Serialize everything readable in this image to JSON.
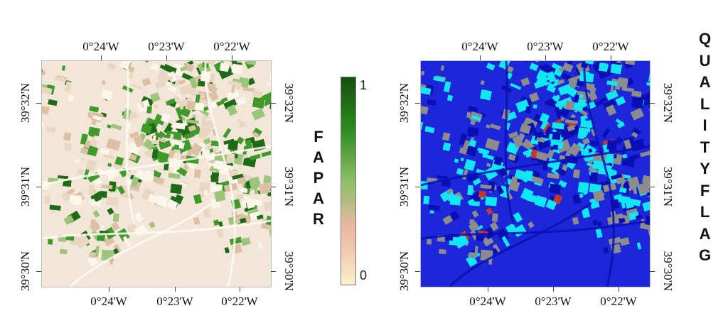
{
  "left_map": {
    "name": "FAPAR",
    "title_letters": [
      "F",
      "A",
      "P",
      "A",
      "R"
    ],
    "x_ticks_top": [
      "0°24'W",
      "0°23'W",
      "0°22'W"
    ],
    "x_ticks_bottom": [
      "0°24'W",
      "0°23'W",
      "0°22'W"
    ],
    "y_ticks_left": [
      "39°32'N",
      "39°31'N",
      "39°30'N"
    ],
    "y_ticks_right": [
      "39°32'N",
      "39°31'N",
      "39°30'N"
    ],
    "colors": {
      "background": "#f2e6d8",
      "bright": "#fbf5ea",
      "field_pale": "#ead7c3",
      "field_tan": "#dcc0a5",
      "field_light_green": "#9cc47a",
      "field_green": "#3f9a2a",
      "field_dark_green": "#1f6a16",
      "road": "#fdfaf4"
    }
  },
  "colorbar": {
    "max_label": "1",
    "min_label": "0",
    "colors": [
      "#174d12",
      "#2f8a1e",
      "#8dbf68",
      "#e8b8a0",
      "#f2c5b0",
      "#fbf0c8"
    ]
  },
  "right_map": {
    "name": "QUALITY FLAG",
    "title_letters": [
      "Q",
      "U",
      "A",
      "L",
      "I",
      "T",
      "Y",
      "F",
      "L",
      "A",
      "G"
    ],
    "x_ticks_top": [
      "0°24'W",
      "0°23'W",
      "0°22'W"
    ],
    "x_ticks_bottom": [
      "0°24'W",
      "0°23'W",
      "0°22'W"
    ],
    "y_ticks_left": [
      "39°32'N",
      "39°31'N",
      "39°30'N"
    ],
    "y_ticks_right": [
      "39°32'N",
      "39°31'N",
      "39°30'N"
    ],
    "colors": {
      "background": "#1d26d8",
      "cyan": "#11e6f5",
      "gray": "#8c8c8c",
      "dark_blue": "#0a0fb3",
      "red": "#c0392b"
    }
  }
}
